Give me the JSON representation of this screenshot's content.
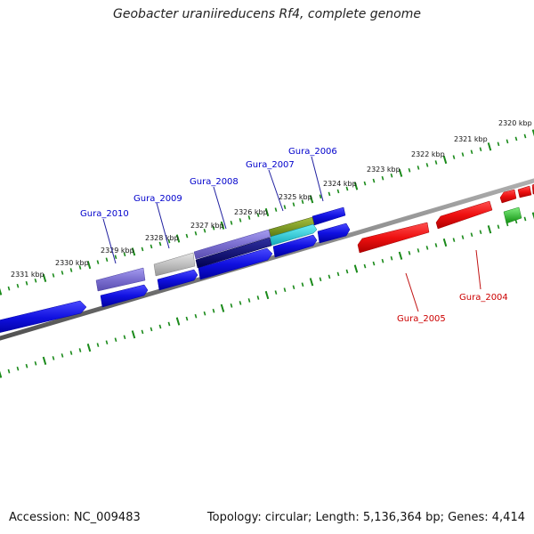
{
  "title": "Geobacter uraniireducens Rf4, complete genome",
  "footer": {
    "accession": "Accession: NC_009483",
    "summary": "Topology: circular; Length: 5,136,364 bp; Genes: 4,414"
  },
  "colors": {
    "tick": "#1a8a1a",
    "backbone": "#808080",
    "gene_blue": "#1010e0",
    "gene_red": "#ee1010",
    "gene_purple": "#7b6fd0",
    "gene_gray": "#b8b8b8",
    "gene_olive": "#7a9a20",
    "gene_cyan": "#18c8d8",
    "gene_navy": "#101080",
    "gene_green": "#30c030",
    "label_blue": "#0000cc",
    "label_red": "#cc0000"
  },
  "scale_labels": [
    "2320 kbp",
    "2321 kbp",
    "2322 kbp",
    "2323 kbp",
    "2324 kbp",
    "2325 kbp",
    "2326 kbp",
    "2327 kbp",
    "2328 kbp",
    "2329 kbp",
    "2330 kbp",
    "2331 kbp"
  ],
  "gene_labels": {
    "top": [
      "Gura_2006",
      "Gura_2007",
      "Gura_2008",
      "Gura_2009",
      "Gura_2010"
    ],
    "bottom": [
      "Gura_2005",
      "Gura_2004"
    ]
  }
}
